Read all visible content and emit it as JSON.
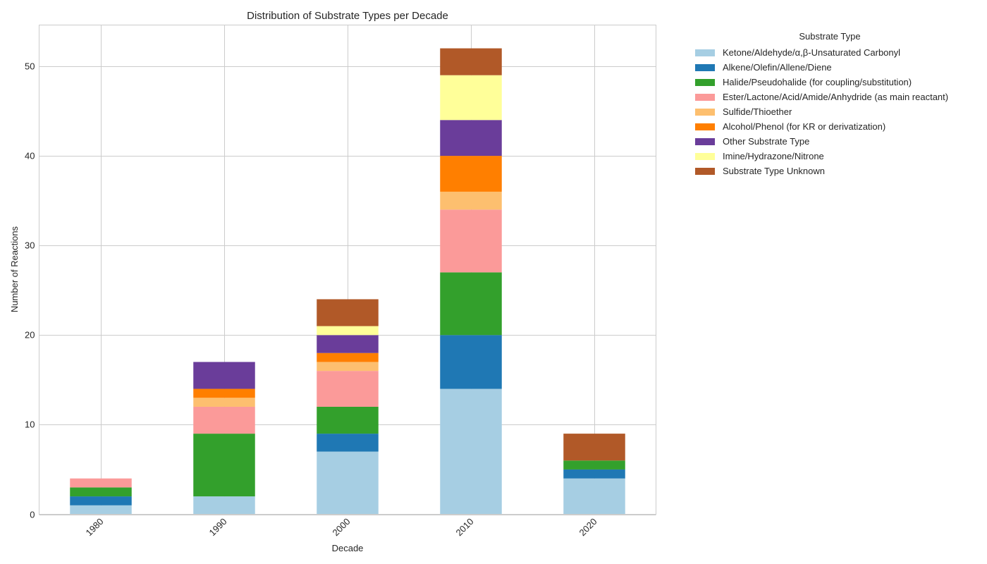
{
  "chart_data": {
    "type": "bar",
    "stacked": true,
    "title": "Distribution of Substrate Types per Decade",
    "xlabel": "Decade",
    "ylabel": "Number of Reactions",
    "ylim": [
      0,
      54.6
    ],
    "yticks": [
      0,
      10,
      20,
      30,
      40,
      50
    ],
    "grid": true,
    "legend_title": "Substrate Type",
    "legend_position": "outside-right",
    "categories": [
      "1980",
      "1990",
      "2000",
      "2010",
      "2020"
    ],
    "series": [
      {
        "name": "Ketone/Aldehyde/α,β-Unsaturated Carbonyl",
        "color": "#a6cee3",
        "values": [
          1,
          2,
          7,
          14,
          4
        ]
      },
      {
        "name": "Alkene/Olefin/Allene/Diene",
        "color": "#1f78b4",
        "values": [
          1,
          0,
          2,
          6,
          1
        ]
      },
      {
        "name": "Halide/Pseudohalide (for coupling/substitution)",
        "color": "#33a02c",
        "values": [
          1,
          7,
          3,
          7,
          1
        ]
      },
      {
        "name": "Ester/Lactone/Acid/Amide/Anhydride (as main reactant)",
        "color": "#fb9a99",
        "values": [
          1,
          3,
          4,
          7,
          0
        ]
      },
      {
        "name": "Sulfide/Thioether",
        "color": "#fdbf6f",
        "values": [
          0,
          1,
          1,
          2,
          0
        ]
      },
      {
        "name": "Alcohol/Phenol (for KR or derivatization)",
        "color": "#ff7f00",
        "values": [
          0,
          1,
          1,
          4,
          0
        ]
      },
      {
        "name": "Other Substrate Type",
        "color": "#6a3d9a",
        "values": [
          0,
          3,
          2,
          4,
          0
        ]
      },
      {
        "name": "Imine/Hydrazone/Nitrone",
        "color": "#ffff99",
        "values": [
          0,
          0,
          1,
          5,
          0
        ]
      },
      {
        "name": "Substrate Type Unknown",
        "color": "#b15928",
        "values": [
          0,
          0,
          3,
          3,
          3
        ]
      }
    ]
  }
}
